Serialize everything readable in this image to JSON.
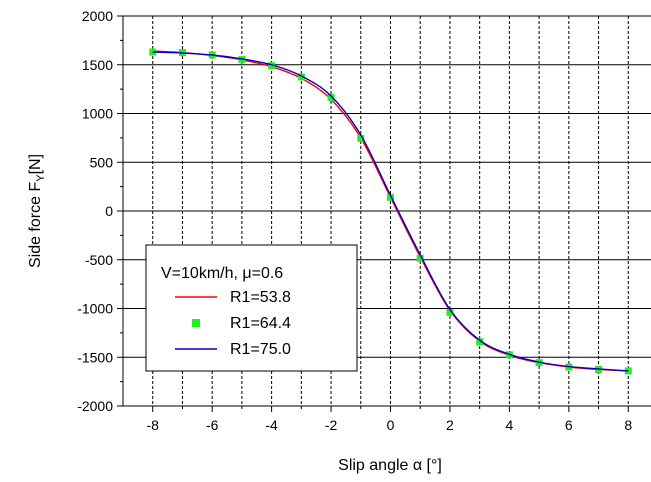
{
  "chart_data": {
    "type": "line",
    "title": "",
    "xlabel": "Slip angle α [°]",
    "ylabel": "Side force F",
    "ylabel_sub": "Y",
    "ylabel_unit": "[N]",
    "xlim": [
      -9,
      9
    ],
    "ylim": [
      -2000,
      2000
    ],
    "xticks": [
      -8,
      -6,
      -4,
      -2,
      0,
      2,
      4,
      6,
      8
    ],
    "yticks": [
      -2000,
      -1500,
      -1000,
      -500,
      0,
      500,
      1000,
      1500,
      2000
    ],
    "x_grid": [
      -8,
      -7,
      -6,
      -5,
      -4,
      -3,
      -2,
      -1,
      0,
      1,
      2,
      3,
      4,
      5,
      6,
      7,
      8
    ],
    "y_grid": [
      -2000,
      -1500,
      -1000,
      -500,
      0,
      500,
      1000,
      1500,
      2000
    ],
    "grid": true,
    "legend_position": "bottom-left",
    "legend_title": "V=10km/h, μ=0.6",
    "series": [
      {
        "name": "R1=53.8",
        "style": "line",
        "color": "#ff0000",
        "x": [
          -8,
          -7,
          -6,
          -5,
          -4,
          -3,
          -2,
          -1,
          0,
          1,
          2,
          3,
          4,
          5,
          6,
          7,
          8
        ],
        "values": [
          1640,
          1625,
          1595,
          1550,
          1480,
          1360,
          1145,
          750,
          140,
          -470,
          -1020,
          -1335,
          -1480,
          -1555,
          -1600,
          -1625,
          -1640
        ]
      },
      {
        "name": "R1=64.4",
        "style": "markers",
        "color": "#22ee22",
        "x": [
          -8,
          -7,
          -6,
          -5,
          -4,
          -3,
          -2,
          -1,
          0,
          1,
          2,
          3,
          4,
          5,
          6,
          7,
          8
        ],
        "values": [
          1630,
          1625,
          1600,
          1555,
          1490,
          1375,
          1165,
          745,
          140,
          -485,
          -1040,
          -1340,
          -1475,
          -1555,
          -1600,
          -1625,
          -1640
        ]
      },
      {
        "name": "R1=75.0",
        "style": "line",
        "color": "#0000cc",
        "x": [
          -8,
          -7,
          -6,
          -5,
          -4,
          -3,
          -2,
          -1,
          0,
          1,
          2,
          3,
          4,
          5,
          6,
          7,
          8
        ],
        "values": [
          1630,
          1620,
          1600,
          1560,
          1500,
          1385,
          1180,
          780,
          160,
          -450,
          -1010,
          -1325,
          -1470,
          -1550,
          -1595,
          -1620,
          -1640
        ]
      }
    ]
  }
}
